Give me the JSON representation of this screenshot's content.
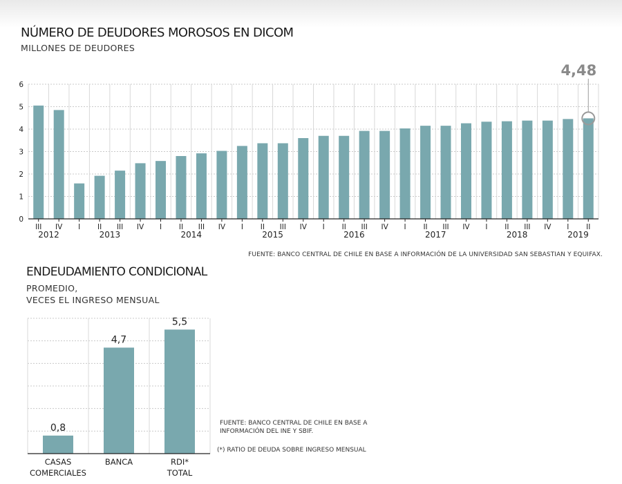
{
  "chart_data": [
    {
      "type": "bar",
      "title": "NÚMERO DE DEUDORES MOROSOS EN DICOM",
      "subtitle": "MILLONES DE DEUDORES",
      "ylim": [
        0,
        6
      ],
      "yticks": [
        "0",
        "1",
        "2",
        "3",
        "4",
        "5",
        "6"
      ],
      "grid": true,
      "categories": [
        "III",
        "IV",
        "I",
        "II",
        "III",
        "IV",
        "I",
        "II",
        "III",
        "IV",
        "I",
        "II",
        "III",
        "IV",
        "I",
        "II",
        "III",
        "IV",
        "I",
        "II",
        "III",
        "IV",
        "I",
        "II",
        "III",
        "IV",
        "I",
        "II"
      ],
      "years": [
        {
          "label": "2012",
          "index": 0.5
        },
        {
          "label": "2013",
          "index": 3.5
        },
        {
          "label": "2014",
          "index": 7.5
        },
        {
          "label": "2015",
          "index": 11.5
        },
        {
          "label": "2016",
          "index": 15.5
        },
        {
          "label": "2017",
          "index": 19.5
        },
        {
          "label": "2018",
          "index": 23.5
        },
        {
          "label": "2019",
          "index": 26.5
        }
      ],
      "values": [
        5.05,
        4.85,
        1.58,
        1.92,
        2.15,
        2.48,
        2.58,
        2.8,
        2.92,
        3.03,
        3.25,
        3.37,
        3.37,
        3.6,
        3.7,
        3.7,
        3.92,
        3.92,
        4.03,
        4.15,
        4.15,
        4.26,
        4.33,
        4.35,
        4.38,
        4.38,
        4.45,
        4.48
      ],
      "highlight": {
        "index": 27,
        "label": "4,48"
      },
      "source": "FUENTE: BANCO CENTRAL DE CHILE EN BASE A INFORMACIÓN DE LA UNIVERSIDAD SAN SEBASTIAN Y EQUIFAX."
    },
    {
      "type": "bar",
      "title": "ENDEUDAMIENTO CONDICIONAL",
      "subtitle_line1": "PROMEDIO,",
      "subtitle_line2": "VECES EL INGRESO MENSUAL",
      "ylim": [
        0,
        6
      ],
      "categories": [
        {
          "line1": "CASAS",
          "line2": "COMERCIALES"
        },
        {
          "line1": "BANCA",
          "line2": ""
        },
        {
          "line1": "RDI*",
          "line2": "TOTAL"
        }
      ],
      "values": [
        0.8,
        4.7,
        5.5
      ],
      "value_labels": [
        "0,8",
        "4,7",
        "5,5"
      ],
      "source": "FUENTE: BANCO CENTRAL DE CHILE EN BASE A INFORMACIÓN DEL INE Y SBIF.",
      "note": "(*) RATIO DE DEUDA SOBRE INGRESO MENSUAL"
    }
  ],
  "colors": {
    "bar": "#79a8ae",
    "grid": "#c8c8c8",
    "axis": "#222222",
    "highlight_text": "#8a8a8a",
    "highlight_ring": "#9a9a9a"
  }
}
